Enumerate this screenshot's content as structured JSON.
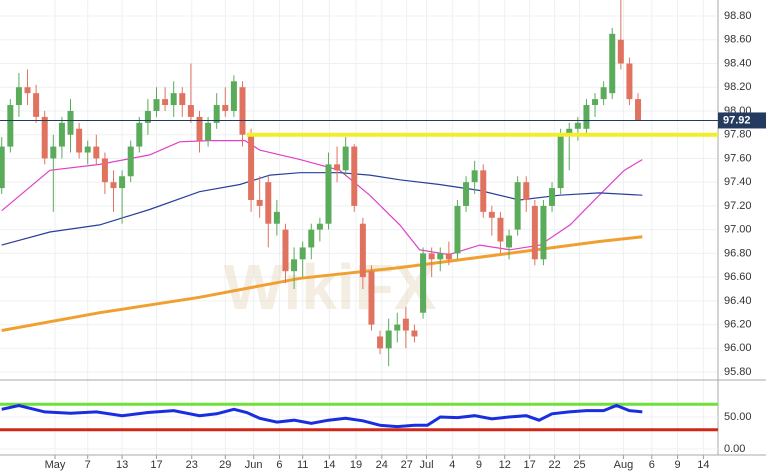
{
  "chart_data": {
    "type": "candlestick",
    "watermark": "WikiFX",
    "grid": true,
    "up_color": "#5aab5a",
    "down_color": "#e0735f",
    "x": [
      0,
      1,
      2,
      3,
      4,
      5,
      6,
      7,
      8,
      9,
      10,
      11,
      12,
      13,
      14,
      15,
      16,
      17,
      18,
      19,
      20,
      21,
      22,
      23,
      24,
      25,
      26,
      27,
      28,
      29,
      30,
      31,
      32,
      33,
      34,
      35,
      36,
      37,
      38,
      39,
      40,
      41,
      42,
      43,
      44,
      45,
      46,
      47,
      48,
      49,
      50,
      51,
      52,
      53,
      54,
      55,
      56,
      57,
      58,
      59,
      60,
      61,
      62,
      63,
      64,
      65,
      66,
      67,
      68,
      69,
      70,
      71,
      72,
      73,
      74
    ],
    "open": [
      97.35,
      97.7,
      98.05,
      98.2,
      98.15,
      97.95,
      97.6,
      97.7,
      97.8,
      97.85,
      97.65,
      97.7,
      97.6,
      97.4,
      97.35,
      97.45,
      97.7,
      97.9,
      98.0,
      98.1,
      98.05,
      98.15,
      98.05,
      97.95,
      97.75,
      97.9,
      98.05,
      98.0,
      98.2,
      97.8,
      97.25,
      97.4,
      97.05,
      97.0,
      96.65,
      96.75,
      96.85,
      97.0,
      97.05,
      97.55,
      97.5,
      97.7,
      97.05,
      96.65,
      96.1,
      96.0,
      96.15,
      96.25,
      96.15,
      96.3,
      96.8,
      96.75,
      96.8,
      96.8,
      97.2,
      97.4,
      97.5,
      97.15,
      97.1,
      96.85,
      97.0,
      97.4,
      97.2,
      96.75,
      97.2,
      97.35,
      97.8,
      97.85,
      97.85,
      98.05,
      98.1,
      98.15,
      98.6,
      98.4,
      98.1
    ],
    "high": [
      97.78,
      98.1,
      98.32,
      98.35,
      98.22,
      98.0,
      97.8,
      97.95,
      98.1,
      97.9,
      97.75,
      97.8,
      97.65,
      97.5,
      97.5,
      97.75,
      97.95,
      98.1,
      98.2,
      98.2,
      98.25,
      98.2,
      98.4,
      98.0,
      97.95,
      98.15,
      98.2,
      98.3,
      98.25,
      97.85,
      97.45,
      97.45,
      97.25,
      97.05,
      96.85,
      96.9,
      97.05,
      97.1,
      97.65,
      97.7,
      97.78,
      97.72,
      97.1,
      96.7,
      96.15,
      96.25,
      96.3,
      96.35,
      96.2,
      96.85,
      96.85,
      96.85,
      96.9,
      97.25,
      97.45,
      97.58,
      97.55,
      97.2,
      97.15,
      97.0,
      97.45,
      97.45,
      97.25,
      97.25,
      97.4,
      97.85,
      97.9,
      97.95,
      98.1,
      98.15,
      98.25,
      98.7,
      98.95,
      98.45,
      98.15
    ],
    "low": [
      97.3,
      97.65,
      97.95,
      98.05,
      97.9,
      97.55,
      97.15,
      97.6,
      97.65,
      97.6,
      97.55,
      97.55,
      97.3,
      97.15,
      97.05,
      97.4,
      97.65,
      97.8,
      97.95,
      98.0,
      97.95,
      97.95,
      97.9,
      97.65,
      97.7,
      97.85,
      97.95,
      97.95,
      97.7,
      97.15,
      97.1,
      96.85,
      96.95,
      96.55,
      96.5,
      96.6,
      96.75,
      96.9,
      97.0,
      97.4,
      97.45,
      97.15,
      96.5,
      96.15,
      95.95,
      95.85,
      96.05,
      96.0,
      96.05,
      96.25,
      96.6,
      96.65,
      96.7,
      96.75,
      97.15,
      97.3,
      97.1,
      96.95,
      96.8,
      96.75,
      96.95,
      97.15,
      96.7,
      96.7,
      97.15,
      97.3,
      97.5,
      97.75,
      97.8,
      97.95,
      98.05,
      98.1,
      98.35,
      98.05,
      97.92
    ],
    "close": [
      97.7,
      98.05,
      98.2,
      98.15,
      97.95,
      97.6,
      97.7,
      97.9,
      98.0,
      97.65,
      97.7,
      97.6,
      97.4,
      97.35,
      97.45,
      97.7,
      97.9,
      98.0,
      98.1,
      98.05,
      98.15,
      98.05,
      97.95,
      97.75,
      97.9,
      98.05,
      98.0,
      98.25,
      97.8,
      97.25,
      97.2,
      97.05,
      97.15,
      96.65,
      96.75,
      96.85,
      97.0,
      97.05,
      97.55,
      97.5,
      97.7,
      97.2,
      96.6,
      96.2,
      96.0,
      96.15,
      96.2,
      96.15,
      96.1,
      96.8,
      96.75,
      96.8,
      96.75,
      97.2,
      97.4,
      97.5,
      97.15,
      97.1,
      96.9,
      96.95,
      97.4,
      97.25,
      96.75,
      97.2,
      97.35,
      97.8,
      97.85,
      97.9,
      98.05,
      98.1,
      98.2,
      98.65,
      98.4,
      98.1,
      97.92
    ],
    "series": [
      {
        "color": "#e040c8",
        "x": [
          0,
          5.6,
          11.4,
          17.2,
          20.7,
          24.2,
          28.3,
          30,
          34.7,
          39.3,
          42.8,
          46.3,
          48.6,
          52,
          55.6,
          59.1,
          62.6,
          66.1,
          69.5,
          72.4,
          74.5
        ],
        "values": [
          97.16,
          97.5,
          97.55,
          97.63,
          97.74,
          97.75,
          97.75,
          97.67,
          97.59,
          97.5,
          97.29,
          97.04,
          96.83,
          96.79,
          96.87,
          96.83,
          96.87,
          97.04,
          97.29,
          97.5,
          97.59
        ]
      },
      {
        "color": "#2a3f9a",
        "x": [
          0,
          5.6,
          11.4,
          17.2,
          23,
          27.7,
          31.2,
          34.7,
          39.3,
          42.8,
          46.3,
          50.9,
          55.6,
          60.2,
          64.9,
          69.5,
          74.5
        ],
        "values": [
          96.87,
          96.98,
          97.04,
          97.17,
          97.32,
          97.38,
          97.46,
          97.48,
          97.48,
          97.46,
          97.42,
          97.38,
          97.33,
          97.25,
          97.29,
          97.31,
          97.29
        ]
      },
      {
        "color": "#f0a030",
        "x": [
          0,
          11.4,
          23,
          34.7,
          46.3,
          57.9,
          69.5,
          74.5
        ],
        "values": [
          96.15,
          96.3,
          96.43,
          96.59,
          96.68,
          96.79,
          96.9,
          96.94
        ]
      }
    ],
    "support_level": 97.8,
    "support_color": "#f2ee2a",
    "last_price": 97.92,
    "last_price_color": "#243a5e",
    "ylim": [
      95.75,
      98.935
    ],
    "xlim": [
      -0.2,
      83.3
    ],
    "yticks": [
      {
        "value": 95.8,
        "label": "95.80"
      },
      {
        "value": 96.0,
        "label": "96.00"
      },
      {
        "value": 96.2,
        "label": "96.20"
      },
      {
        "value": 96.4,
        "label": "96.40"
      },
      {
        "value": 96.6,
        "label": "96.60"
      },
      {
        "value": 96.8,
        "label": "96.80"
      },
      {
        "value": 97.0,
        "label": "97.00"
      },
      {
        "value": 97.2,
        "label": "97.20"
      },
      {
        "value": 97.4,
        "label": "97.40"
      },
      {
        "value": 97.6,
        "label": "97.60"
      },
      {
        "value": 97.8,
        "label": "97.80"
      },
      {
        "value": 98.0,
        "label": "98.00"
      },
      {
        "value": 98.2,
        "label": "98.20"
      },
      {
        "value": 98.4,
        "label": "98.40"
      },
      {
        "value": 98.6,
        "label": "98.60"
      },
      {
        "value": 98.8,
        "label": "98.80"
      }
    ],
    "xticks": [
      {
        "value": 6.2,
        "label": "May"
      },
      {
        "value": 10,
        "label": "7"
      },
      {
        "value": 14,
        "label": "13"
      },
      {
        "value": 18,
        "label": "17"
      },
      {
        "value": 22.1,
        "label": "23"
      },
      {
        "value": 26,
        "label": "29"
      },
      {
        "value": 29.3,
        "label": "Jun"
      },
      {
        "value": 32.3,
        "label": "6"
      },
      {
        "value": 35,
        "label": "11"
      },
      {
        "value": 38.1,
        "label": "14"
      },
      {
        "value": 41.2,
        "label": "19"
      },
      {
        "value": 44.2,
        "label": "24"
      },
      {
        "value": 47.1,
        "label": "27"
      },
      {
        "value": 49.4,
        "label": "Jul"
      },
      {
        "value": 52.4,
        "label": "4"
      },
      {
        "value": 55.5,
        "label": "9"
      },
      {
        "value": 58.5,
        "label": "12"
      },
      {
        "value": 61.4,
        "label": "17"
      },
      {
        "value": 64.3,
        "label": "22"
      },
      {
        "value": 67.2,
        "label": "25"
      },
      {
        "value": 72.3,
        "label": "Aug"
      },
      {
        "value": 75.6,
        "label": "6"
      },
      {
        "value": 78.6,
        "label": "9"
      },
      {
        "value": 81.6,
        "label": "14"
      }
    ],
    "rsi": {
      "color": "#1a2ee0",
      "x": [
        0,
        2,
        5,
        8,
        11,
        14,
        17,
        20,
        23,
        25,
        27,
        28.5,
        30,
        32,
        34,
        36,
        38,
        40,
        42,
        44,
        46,
        48,
        49.5,
        51,
        53,
        55,
        57,
        59,
        61,
        62.5,
        64,
        66,
        68,
        70,
        71.5,
        73,
        74.5
      ],
      "values": [
        62,
        68,
        58,
        56,
        58,
        52,
        57,
        60,
        52,
        55,
        62,
        57,
        48,
        42,
        45,
        40,
        45,
        48,
        44,
        37,
        35,
        37,
        37,
        50,
        49,
        52,
        47,
        50,
        52,
        45,
        55,
        58,
        60,
        60,
        68,
        60,
        58
      ],
      "ylim": [
        -9.4,
        104.7
      ],
      "yticks": [
        {
          "value": 0,
          "label": "0.00"
        },
        {
          "value": 50,
          "label": "50.00"
        }
      ],
      "levels": [
        {
          "value": 70,
          "color": "#6fe03a"
        },
        {
          "value": 30,
          "color": "#d02818"
        }
      ]
    }
  }
}
